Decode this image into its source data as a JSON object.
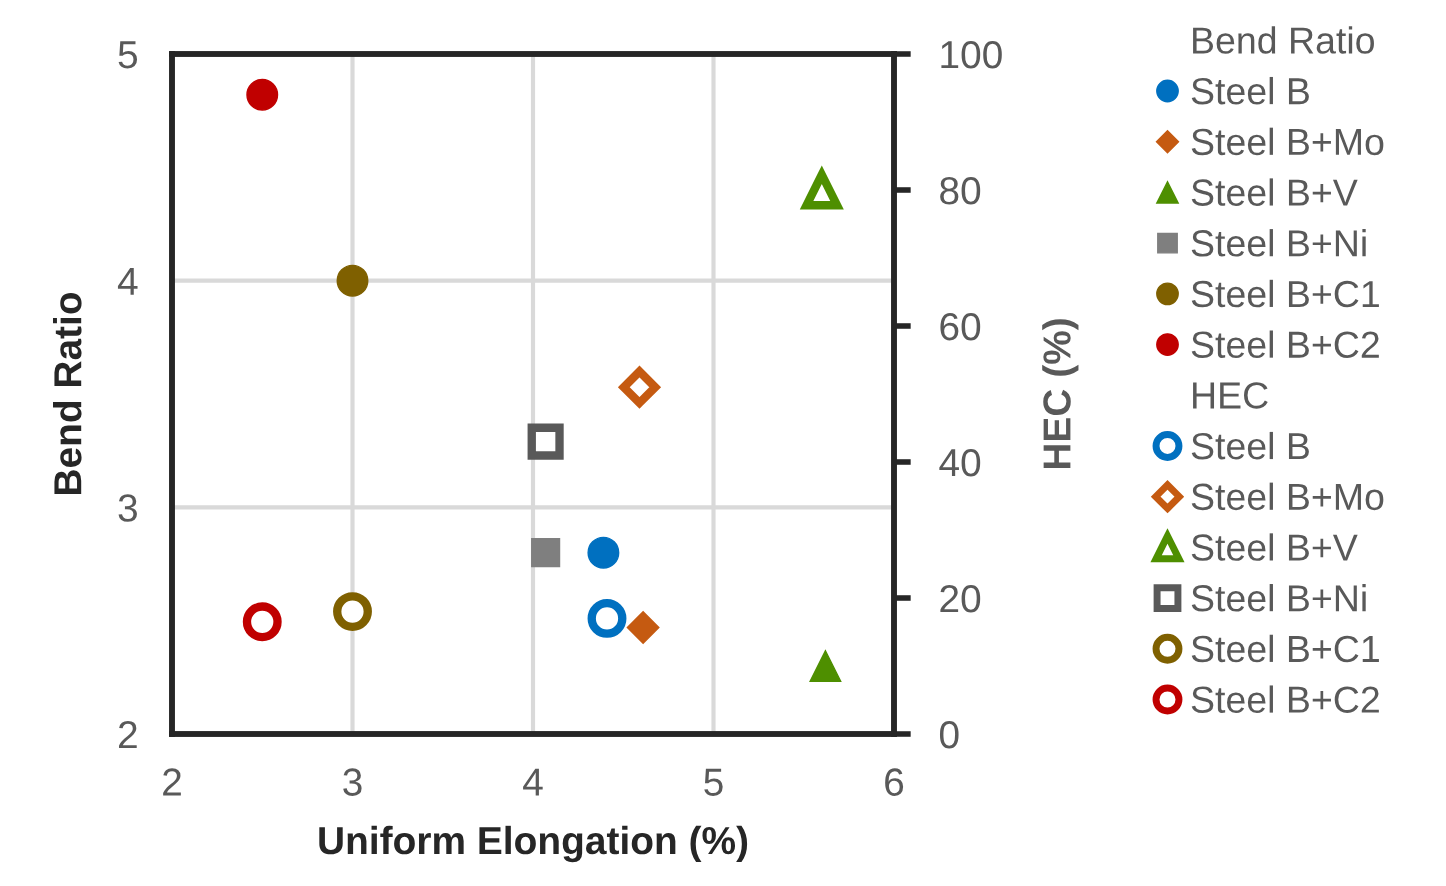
{
  "chart_data": {
    "type": "scatter",
    "xlabel": "Uniform Elongation (%)",
    "ylabel": "Bend Ratio",
    "y2label": "HEC (%)",
    "xlim": [
      2,
      6
    ],
    "xticks": [
      2,
      3,
      4,
      5,
      6
    ],
    "ylim": [
      2,
      5
    ],
    "yticks": [
      2,
      3,
      4,
      5
    ],
    "y2lim": [
      0,
      100
    ],
    "y2ticks": [
      0,
      20,
      40,
      60,
      80,
      100
    ],
    "grid": true,
    "legend": "right",
    "legend_title": "Bend Ratio",
    "annotations": [
      "HEC"
    ],
    "series": [
      {
        "name": "Steel B",
        "color": "#0070c0",
        "marker": "circle",
        "x": [
          4.39
        ],
        "values": [
          2.8
        ]
      },
      {
        "name": "Steel B+Mo",
        "color": "#c55a11",
        "marker": "diamond",
        "x": [
          4.61
        ],
        "values": [
          2.47
        ]
      },
      {
        "name": "Steel B+V",
        "color": "#4e8f00",
        "marker": "triangle",
        "x": [
          5.62
        ],
        "values": [
          2.3
        ]
      },
      {
        "name": "Steel B+Ni",
        "color": "#7f7f7f",
        "marker": "square",
        "x": [
          4.07
        ],
        "values": [
          2.8
        ]
      },
      {
        "name": "Steel B+C1",
        "color": "#7f6000",
        "marker": "circle",
        "x": [
          3.0
        ],
        "values": [
          4.0
        ]
      },
      {
        "name": "Steel B+C2",
        "color": "#c00000",
        "marker": "circle",
        "x": [
          2.5
        ],
        "values": [
          4.82
        ]
      },
      {
        "name": "Steel B",
        "color": "#0070c0",
        "marker": "circle",
        "axis": "y2",
        "x": [
          4.41
        ],
        "values": [
          17
        ]
      },
      {
        "name": "Steel B+Mo",
        "color": "#c55a11",
        "marker": "diamond",
        "axis": "y2",
        "x": [
          4.59
        ],
        "values": [
          51
        ]
      },
      {
        "name": "Steel B+V",
        "color": "#4e8f00",
        "marker": "triangle",
        "axis": "y2",
        "x": [
          5.6
        ],
        "values": [
          80
        ]
      },
      {
        "name": "Steel B+Ni",
        "color": "#595959",
        "marker": "square",
        "axis": "y2",
        "x": [
          4.07
        ],
        "values": [
          43
        ]
      },
      {
        "name": "Steel B+C1",
        "color": "#7f6000",
        "marker": "circle",
        "axis": "y2",
        "x": [
          3.0
        ],
        "values": [
          18
        ]
      },
      {
        "name": "Steel B+C2",
        "color": "#c00000",
        "marker": "circle",
        "axis": "y2",
        "x": [
          2.5
        ],
        "values": [
          16.5
        ]
      }
    ]
  }
}
